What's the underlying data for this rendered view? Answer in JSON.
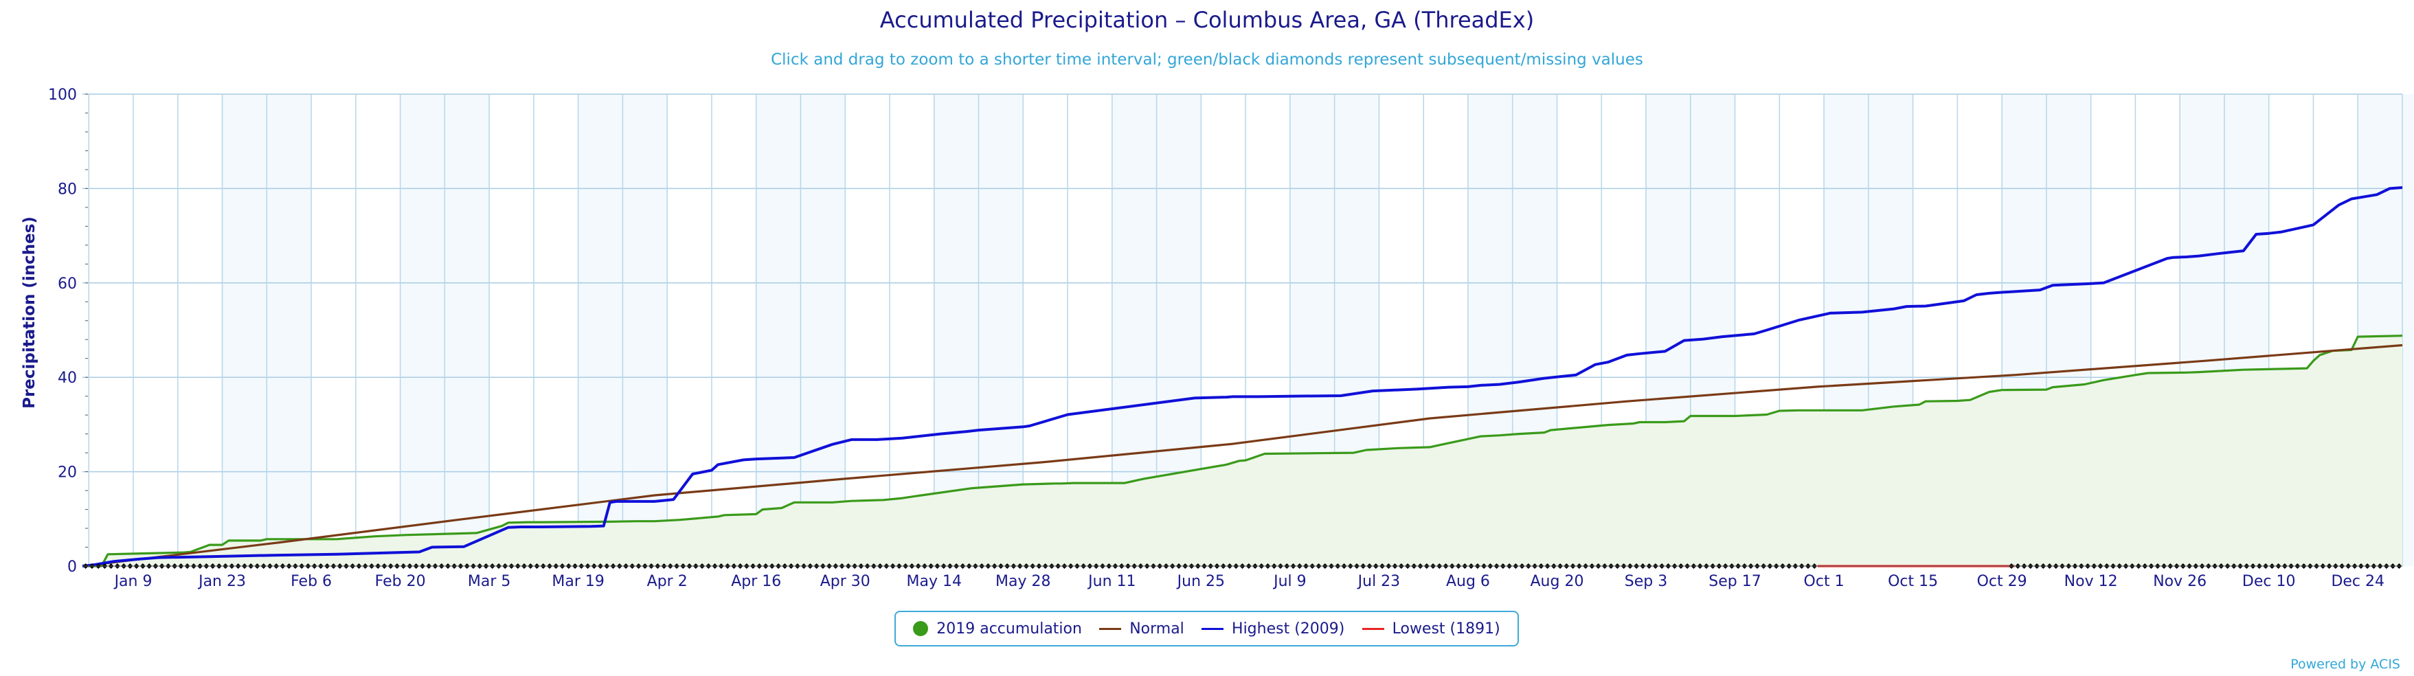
{
  "chart_data": {
    "type": "line",
    "title": "Accumulated Precipitation – Columbus Area, GA (ThreadEx)",
    "subtitle": "Click and drag to zoom to a shorter time interval; green/black diamonds represent subsequent/missing values",
    "ylabel": "Precipitation (inches)",
    "ylim": [
      0,
      100
    ],
    "yticks": [
      "0",
      "20",
      "40",
      "60",
      "80",
      "100"
    ],
    "xlim_day": [
      0,
      365
    ],
    "xtick_labels": [
      "Jan 9",
      "Jan 23",
      "Feb 6",
      "Feb 20",
      "Mar 5",
      "Mar 19",
      "Apr 2",
      "Apr 16",
      "Apr 30",
      "May 14",
      "May 28",
      "Jun 11",
      "Jun 25",
      "Jul 9",
      "Jul 23",
      "Aug 6",
      "Aug 20",
      "Sep 3",
      "Sep 17",
      "Oct 1",
      "Oct 15",
      "Oct 29",
      "Nov 12",
      "Nov 26",
      "Dec 10",
      "Dec 24"
    ],
    "legend_position": "bottom-center",
    "grid": true,
    "missing_periods": [
      [
        "Jan 1",
        "Sep 30"
      ],
      [
        "Oct 31",
        "Dec 31"
      ]
    ],
    "series": [
      {
        "name": "2019 accumulation",
        "color": "#3a9a1a",
        "fill": "#edf6e8",
        "days": [
          0,
          3,
          4,
          10,
          16,
          17,
          20,
          22,
          23,
          28,
          29,
          40,
          46,
          51,
          62,
          66,
          67,
          70,
          72,
          83,
          87,
          90,
          94,
          100,
          101,
          106,
          107,
          110,
          112,
          118,
          121,
          126,
          129,
          131,
          132,
          140,
          148,
          153,
          154,
          156,
          164,
          167,
          180,
          182,
          183,
          186,
          200,
          202,
          207,
          212,
          213,
          220,
          223,
          226,
          230,
          231,
          240,
          244,
          245,
          249,
          252,
          253,
          260,
          265,
          267,
          270,
          280,
          285,
          289,
          290,
          295,
          297,
          300,
          302,
          309,
          310,
          315,
          318,
          323,
          325,
          331,
          333,
          340,
          350,
          351,
          352,
          354,
          357,
          358,
          365
        ],
        "values": [
          0,
          0,
          2.5,
          2.7,
          2.9,
          3.0,
          4.5,
          4.5,
          5.4,
          5.4,
          5.7,
          5.7,
          6.3,
          6.6,
          7.0,
          8.5,
          9.2,
          9.3,
          9.3,
          9.4,
          9.5,
          9.5,
          9.8,
          10.5,
          10.8,
          11.0,
          12.0,
          12.3,
          13.5,
          13.5,
          13.8,
          14.0,
          14.4,
          14.8,
          15.0,
          16.5,
          17.3,
          17.5,
          17.5,
          17.6,
          17.6,
          18.5,
          21.5,
          22.3,
          22.4,
          23.8,
          24.0,
          24.6,
          25.0,
          25.2,
          25.5,
          27.5,
          27.7,
          28.0,
          28.3,
          28.8,
          29.9,
          30.2,
          30.5,
          30.5,
          30.7,
          31.8,
          31.8,
          32.1,
          32.9,
          33.0,
          33.0,
          33.8,
          34.2,
          34.9,
          35.0,
          35.2,
          36.9,
          37.3,
          37.4,
          37.9,
          38.5,
          39.4,
          40.5,
          40.9,
          41.0,
          41.1,
          41.6,
          41.9,
          43.5,
          44.7,
          45.6,
          45.8,
          48.6,
          48.8
        ]
      },
      {
        "name": "Normal",
        "color": "#7a3a16",
        "days": [
          0,
          31,
          59,
          90,
          120,
          151,
          181,
          212,
          243,
          273,
          304,
          334,
          365
        ],
        "values": [
          0,
          5.0,
          9.8,
          15.0,
          18.5,
          22.0,
          25.9,
          31.3,
          34.9,
          38.0,
          40.5,
          43.5,
          46.8
        ]
      },
      {
        "name": "Highest (2009)",
        "color": "#1010d8",
        "days": [
          0,
          2,
          5,
          9,
          12,
          20,
          30,
          40,
          53,
          55,
          60,
          67,
          69,
          72,
          80,
          82,
          83,
          84,
          90,
          93,
          96,
          99,
          100,
          104,
          106,
          112,
          118,
          121,
          125,
          129,
          135,
          139,
          141,
          148,
          149,
          155,
          175,
          180,
          181,
          185,
          190,
          198,
          203,
          210,
          215,
          218,
          220,
          223,
          226,
          230,
          235,
          238,
          240,
          243,
          245,
          249,
          252,
          255,
          258,
          263,
          265,
          270,
          275,
          280,
          285,
          287,
          290,
          296,
          298,
          300,
          302,
          308,
          310,
          315,
          318,
          328,
          329,
          331,
          333,
          336,
          338,
          340,
          342,
          344,
          346,
          350,
          351,
          355,
          357,
          361,
          363,
          365
        ],
        "values": [
          0,
          0.3,
          1.0,
          1.5,
          1.8,
          2.0,
          2.3,
          2.5,
          3.0,
          4.0,
          4.1,
          8.2,
          8.3,
          8.3,
          8.4,
          8.5,
          13.5,
          13.7,
          13.7,
          14.1,
          19.5,
          20.3,
          21.5,
          22.5,
          22.7,
          23.0,
          25.8,
          26.8,
          26.8,
          27.1,
          28.0,
          28.5,
          28.8,
          29.5,
          29.7,
          32.1,
          35.6,
          35.8,
          35.9,
          35.9,
          36.0,
          36.1,
          37.1,
          37.5,
          37.9,
          38.0,
          38.3,
          38.5,
          39.0,
          39.8,
          40.5,
          42.7,
          43.2,
          44.7,
          45.0,
          45.5,
          47.8,
          48.1,
          48.6,
          49.2,
          50.0,
          52.1,
          53.6,
          53.8,
          54.5,
          55.0,
          55.1,
          56.2,
          57.5,
          57.8,
          58.0,
          58.5,
          59.5,
          59.8,
          60.0,
          65.2,
          65.4,
          65.5,
          65.7,
          66.2,
          66.5,
          66.8,
          70.3,
          70.5,
          70.8,
          72.0,
          72.3,
          76.5,
          77.8,
          78.7,
          80.0,
          80.2
        ]
      },
      {
        "name": "Lowest (1891)",
        "color": "#e62626",
        "days": [
          273,
          304
        ],
        "values": [
          0,
          0
        ]
      }
    ]
  },
  "legend": {
    "items": [
      {
        "label": "2019 accumulation",
        "color": "#3a9a1a",
        "shape": "dot"
      },
      {
        "label": "Normal",
        "color": "#7a3a16",
        "shape": "line"
      },
      {
        "label": "Highest (2009)",
        "color": "#1010d8",
        "shape": "line"
      },
      {
        "label": "Lowest (1891)",
        "color": "#e62626",
        "shape": "line"
      }
    ]
  },
  "credits": "Powered by ACIS",
  "colors": {
    "text": "#1a1a8c",
    "subtitle": "#33a6d6",
    "hgrid": "#a9cbe2",
    "vgrid": "#b7d6ea",
    "band": "#f3f9fd"
  }
}
